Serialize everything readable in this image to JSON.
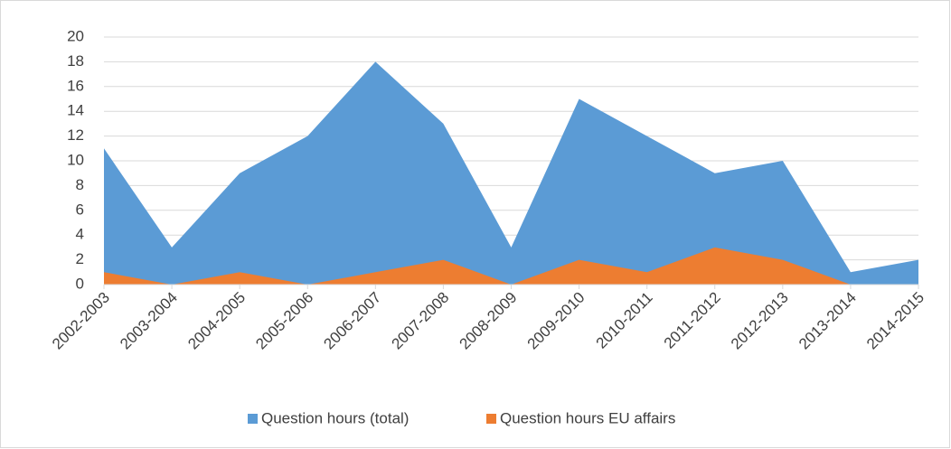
{
  "chart_data": {
    "type": "area",
    "categories": [
      "2002-2003",
      "2003-2004",
      "2004-2005",
      "2005-2006",
      "2006-2007",
      "2007-2008",
      "2008-2009",
      "2009-2010",
      "2010-2011",
      "2011-2012",
      "2012-2013",
      "2013-2014",
      "2014-2015"
    ],
    "series": [
      {
        "name": "Question hours (total)",
        "color": "#5b9bd5",
        "values": [
          11,
          3,
          9,
          12,
          18,
          13,
          3,
          15,
          12,
          9,
          10,
          1,
          2
        ]
      },
      {
        "name": "Question hours EU affairs",
        "color": "#ed7d31",
        "values": [
          1,
          0,
          1,
          0,
          1,
          2,
          0,
          2,
          1,
          3,
          2,
          0,
          0
        ]
      }
    ],
    "ylim": [
      0,
      20
    ],
    "yticks": [
      0,
      2,
      4,
      6,
      8,
      10,
      12,
      14,
      16,
      18,
      20
    ],
    "grid": true,
    "legend": "bottom"
  }
}
